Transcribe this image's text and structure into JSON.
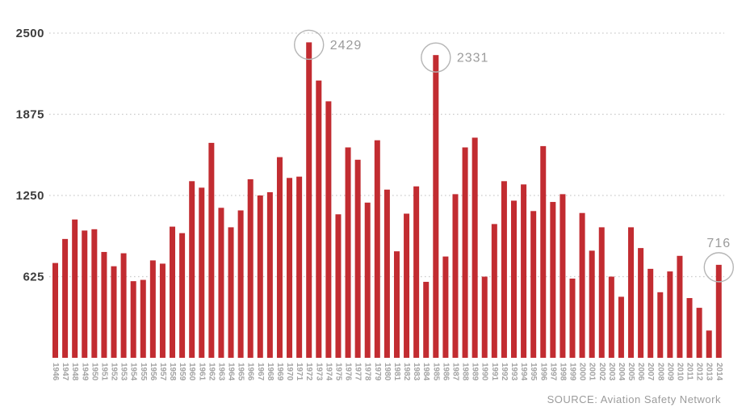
{
  "chart_data": {
    "type": "bar",
    "title": "",
    "xlabel": "",
    "ylabel": "",
    "ylim": [
      0,
      2500
    ],
    "yticks": [
      625,
      1250,
      1875,
      2500
    ],
    "grid": "horizontal-dotted",
    "legend": "none",
    "categories": [
      "1946",
      "1947",
      "1948",
      "1949",
      "1950",
      "1951",
      "1952",
      "1953",
      "1954",
      "1955",
      "1956",
      "1957",
      "1958",
      "1959",
      "1960",
      "1961",
      "1962",
      "1963",
      "1964",
      "1965",
      "1966",
      "1967",
      "1968",
      "1969",
      "1970",
      "1971",
      "1972",
      "1973",
      "1974",
      "1975",
      "1976",
      "1977",
      "1978",
      "1979",
      "1980",
      "1981",
      "1982",
      "1983",
      "1984",
      "1985",
      "1986",
      "1987",
      "1988",
      "1989",
      "1990",
      "1991",
      "1992",
      "1993",
      "1994",
      "1995",
      "1996",
      "1997",
      "1998",
      "1999",
      "2000",
      "2001",
      "2002",
      "2003",
      "2004",
      "2005",
      "2006",
      "2007",
      "2008",
      "2009",
      "2010",
      "2011",
      "2012",
      "2013",
      "2014"
    ],
    "values": [
      730,
      915,
      1065,
      980,
      990,
      815,
      705,
      805,
      590,
      600,
      750,
      725,
      1010,
      960,
      1360,
      1310,
      1655,
      1155,
      1005,
      1135,
      1375,
      1250,
      1275,
      1545,
      1385,
      1395,
      2429,
      2135,
      1975,
      1105,
      1620,
      1525,
      1195,
      1675,
      1295,
      820,
      1110,
      1320,
      585,
      2331,
      780,
      1260,
      1620,
      1695,
      625,
      1030,
      1360,
      1210,
      1335,
      1130,
      1630,
      1200,
      1260,
      610,
      1115,
      825,
      1005,
      625,
      470,
      1005,
      845,
      685,
      505,
      665,
      785,
      460,
      385,
      210,
      716
    ],
    "annotations": [
      {
        "category": "1972",
        "label": "2429",
        "placement": "right",
        "circled": true
      },
      {
        "category": "1985",
        "label": "2331",
        "placement": "right",
        "circled": true
      },
      {
        "category": "2014",
        "label": "716",
        "placement": "above",
        "circled": true
      }
    ],
    "source": "SOURCE: Aviation Safety Network",
    "colors": {
      "bar": "#c22c31",
      "gridline": "#cccccc",
      "y_axis_text": "#3d3d3d",
      "x_tick_text": "#a3a3a3",
      "annotation_text": "#9b9b9b",
      "annotation_circle": "#b5b5b5",
      "background": "#ffffff"
    }
  }
}
